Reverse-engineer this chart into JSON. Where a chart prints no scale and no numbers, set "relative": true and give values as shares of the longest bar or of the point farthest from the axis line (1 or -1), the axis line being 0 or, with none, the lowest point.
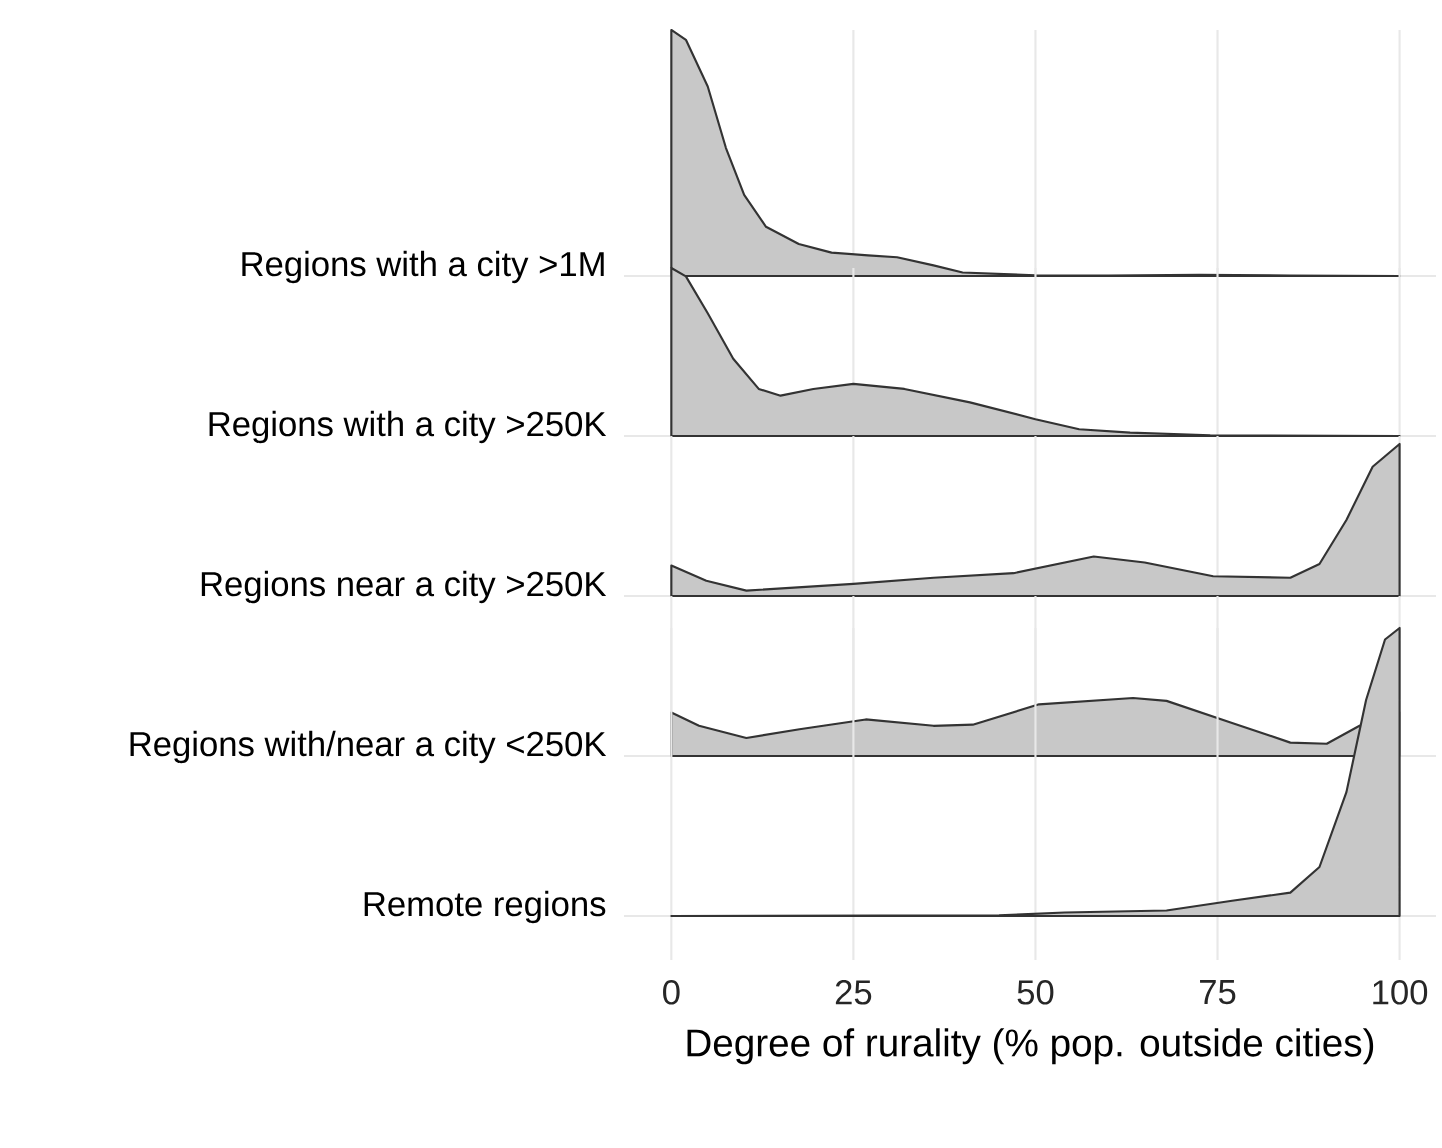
{
  "chart_data": [
    {
      "type": "area",
      "ylabel": "Regions with a city >1M",
      "relative": true,
      "color": "#c8c8c8",
      "xlim": [
        -6.5,
        105
      ],
      "xticks": [
        0,
        25,
        50,
        75,
        100
      ],
      "grid": true,
      "tick_labels": false,
      "x": [
        0,
        2,
        5,
        7.5,
        10,
        13,
        17.5,
        22,
        27,
        31,
        36,
        40,
        50,
        60,
        72.5,
        85,
        100
      ],
      "values": [
        1,
        0.96,
        0.77,
        0.52,
        0.33,
        0.2,
        0.13,
        0.095,
        0.084,
        0.076,
        0.043,
        0.014,
        0.003,
        0.002,
        0.005,
        0.002,
        0
      ]
    },
    {
      "type": "area",
      "ylabel": "Regions with a city >250K",
      "relative": true,
      "color": "#c8c8c8",
      "xlim": [
        -6.5,
        105
      ],
      "xticks": [
        0,
        25,
        50,
        75,
        100
      ],
      "grid": true,
      "tick_labels": false,
      "x": [
        0,
        2,
        5,
        8.5,
        12,
        15,
        19.5,
        25,
        32,
        41,
        50,
        56,
        63,
        74,
        100
      ],
      "values": [
        1,
        0.95,
        0.73,
        0.46,
        0.28,
        0.24,
        0.28,
        0.31,
        0.28,
        0.2,
        0.1,
        0.04,
        0.02,
        0.004,
        0
      ]
    },
    {
      "type": "area",
      "ylabel": "Regions near a city >250K",
      "relative": true,
      "color": "#c8c8c8",
      "xlim": [
        -6.5,
        105
      ],
      "xticks": [
        0,
        25,
        50,
        75,
        100
      ],
      "grid": true,
      "tick_labels": false,
      "x": [
        0,
        4.8,
        10.3,
        25,
        36,
        47,
        58,
        65,
        74.4,
        85,
        89,
        92.7,
        96.3,
        100
      ],
      "values": [
        0.2,
        0.1,
        0.035,
        0.08,
        0.12,
        0.15,
        0.26,
        0.22,
        0.13,
        0.12,
        0.21,
        0.5,
        0.85,
        1
      ]
    },
    {
      "type": "area",
      "ylabel": "Regions with/near a city <250K",
      "relative": true,
      "color": "#c8c8c8",
      "xlim": [
        -6.5,
        105
      ],
      "xticks": [
        0,
        25,
        50,
        75,
        100
      ],
      "grid": true,
      "tick_labels": false,
      "x": [
        0,
        3.8,
        10.3,
        17.6,
        26.7,
        36,
        41.4,
        50.5,
        63.4,
        68,
        77,
        85,
        90,
        94.5,
        100
      ],
      "values": [
        0.75,
        0.52,
        0.31,
        0.46,
        0.63,
        0.52,
        0.54,
        0.89,
        1,
        0.95,
        0.57,
        0.23,
        0.21,
        0.52,
        0.75
      ]
    },
    {
      "type": "area",
      "ylabel": "Remote regions",
      "xlabel": "Degree of rurality (% pop. outside cities)",
      "relative": true,
      "color": "#c8c8c8",
      "xlim": [
        -6.5,
        105
      ],
      "xticks": [
        0,
        25,
        50,
        75,
        100
      ],
      "grid": true,
      "tick_labels": "x",
      "x": [
        0,
        45,
        54,
        68,
        77,
        85,
        89,
        92.7,
        95.4,
        98,
        100
      ],
      "values": [
        0,
        0.002,
        0.012,
        0.019,
        0.053,
        0.081,
        0.17,
        0.43,
        0.75,
        0.96,
        1
      ]
    }
  ]
}
